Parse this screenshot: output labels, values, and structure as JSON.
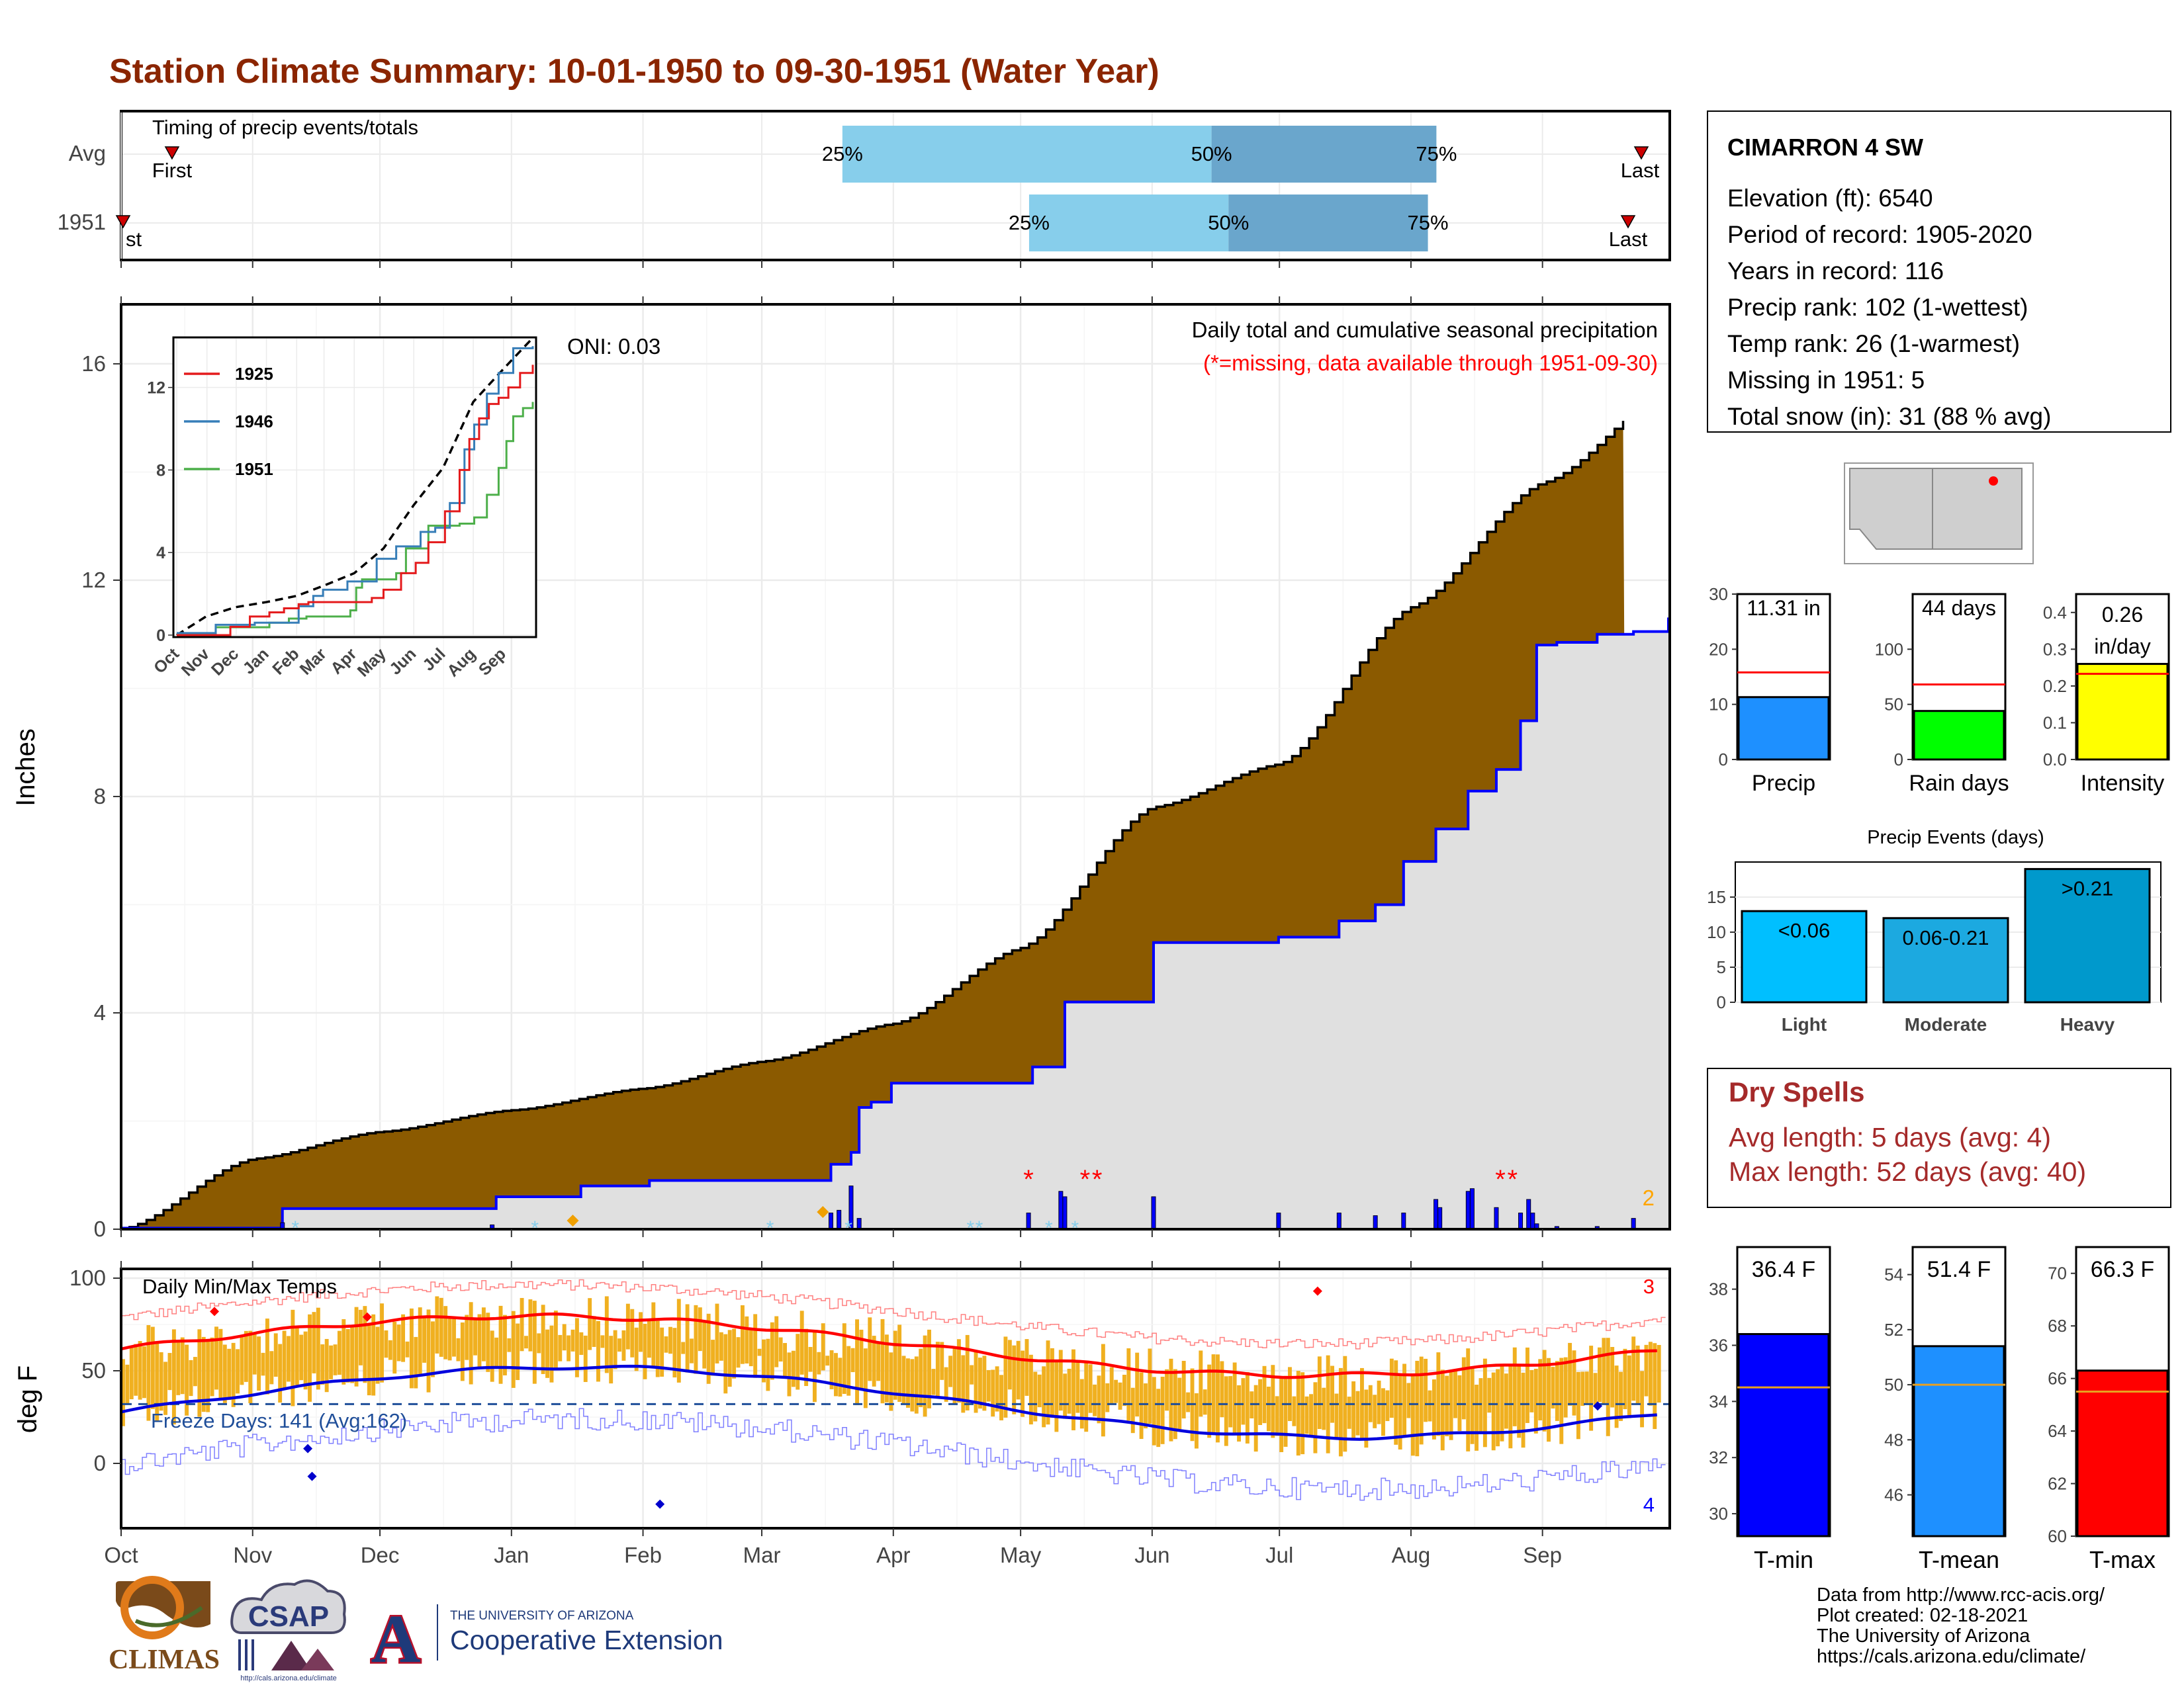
{
  "title": "Station Climate Summary: 10-01-1950 to 09-30-1951 (Water Year)",
  "timing": {
    "heading": "Timing of precip events/totals",
    "row_labels": [
      "Avg",
      "1951"
    ],
    "first_label": "First",
    "first_label_1951": "st",
    "last_label": "Last",
    "pct_labels": [
      "25%",
      "50%",
      "75%"
    ],
    "avg": {
      "first_day": 12,
      "p25_day": 170,
      "p50_day": 257,
      "p75_day": 310,
      "last_day": 370
    },
    "y1951": {
      "first_day": 0,
      "p25_day": 214,
      "p50_day": 261,
      "p75_day": 308,
      "last_day": 366
    }
  },
  "months": [
    "Oct",
    "Nov",
    "Dec",
    "Jan",
    "Feb",
    "Mar",
    "Apr",
    "May",
    "Jun",
    "Jul",
    "Aug",
    "Sep"
  ],
  "precip_panel": {
    "ylabel": "Inches",
    "yticks": [
      "0",
      "4",
      "8",
      "12",
      "16"
    ],
    "annotation_title": "Daily total and cumulative seasonal precipitation",
    "annotation_missing": "(*=missing, data available through 1951-09-30)",
    "oni": "ONI: 0.03",
    "corner_count": "2",
    "inset": {
      "yticks": [
        "0",
        "4",
        "8",
        "12"
      ],
      "months": [
        "Oct",
        "Nov",
        "Dec",
        "Jan",
        "Feb",
        "Mar",
        "Apr",
        "May",
        "Jun",
        "Jul",
        "Aug",
        "Sep"
      ],
      "legend": [
        {
          "name": "1925",
          "color": "#e41a1c"
        },
        {
          "name": "1946",
          "color": "#377eb8"
        },
        {
          "name": "1951",
          "color": "#4daf4a"
        }
      ]
    }
  },
  "temp_panel": {
    "ylabel": "deg F",
    "yticks": [
      "0",
      "50",
      "100"
    ],
    "heading": "Daily Min/Max Temps",
    "freeze_label": "Freeze Days: 141 (Avg:162)",
    "corner_top": "3",
    "corner_bottom": "4"
  },
  "station_box": {
    "name": "CIMARRON 4 SW",
    "lines": [
      "Elevation (ft): 6540",
      "Period of record: 1905-2020",
      "Years in record: 116",
      "Precip rank: 102 (1-wettest)",
      "Temp rank: 26 (1-warmest)",
      "Missing in 1951: 5",
      "Total snow (in): 31 (88 % avg)"
    ]
  },
  "mini_bars": [
    {
      "label": "Precip",
      "value_text": "11.31 in",
      "value": 11.31,
      "avg": 15.8,
      "ymax": 30,
      "yticks": [
        "0",
        "10",
        "20",
        "30"
      ],
      "color": "#1e90ff"
    },
    {
      "label": "Rain days",
      "value_text": "44 days",
      "value": 44,
      "avg": 68,
      "ymax": 150,
      "yticks": [
        "0",
        "50",
        "100"
      ],
      "color": "#00ff00"
    },
    {
      "label": "Intensity",
      "value_text": "0.26",
      "value_text2": "in/day",
      "value": 0.26,
      "avg": 0.233,
      "ymax": 0.45,
      "yticks": [
        "0.0",
        "0.1",
        "0.2",
        "0.3",
        "0.4"
      ],
      "color": "#ffff00"
    }
  ],
  "precip_events": {
    "title": "Precip Events (days)",
    "yticks": [
      "0",
      "5",
      "10",
      "15"
    ],
    "categories": [
      "Light",
      "Moderate",
      "Heavy"
    ],
    "bar_labels": [
      "<0.06",
      "0.06-0.21",
      ">0.21"
    ],
    "values": [
      13,
      12,
      19
    ],
    "colors": [
      "#00bfff",
      "#1ca9e0",
      "#0099cc"
    ]
  },
  "dry_spells": {
    "title": "Dry Spells",
    "lines": [
      "Avg length: 5 days (avg: 4)",
      "Max length: 52 days (avg: 40)"
    ]
  },
  "temp_bars": [
    {
      "label": "T-min",
      "value_text": "36.4 F",
      "value": 36.4,
      "avg": 34.5,
      "ymin": 29.2,
      "ymax": 39.5,
      "yticks": [
        "30",
        "32",
        "34",
        "36",
        "38"
      ],
      "color": "#0000ff"
    },
    {
      "label": "T-mean",
      "value_text": "51.4 F",
      "value": 51.4,
      "avg": 50.0,
      "ymin": 44.5,
      "ymax": 55.0,
      "yticks": [
        "46",
        "48",
        "50",
        "52",
        "54"
      ],
      "color": "#1e90ff"
    },
    {
      "label": "T-max",
      "value_text": "66.3 F",
      "value": 66.3,
      "avg": 65.5,
      "ymin": 60,
      "ymax": 71.0,
      "yticks": [
        "60",
        "62",
        "64",
        "66",
        "68",
        "70"
      ],
      "color": "#ff0000"
    }
  ],
  "footer": {
    "lines": [
      "Data from http://www.rcc-acis.org/",
      "Plot created: 02-18-2021",
      "The University of Arizona",
      "https://cals.arizona.edu/climate/"
    ]
  },
  "logos": {
    "climas": "CLIMAS",
    "csap": "CSAP",
    "csap_url": "http://cals.arizona.edu/climate",
    "ua_top": "THE UNIVERSITY OF ARIZONA",
    "ua_bottom": "Cooperative Extension",
    "ua_letter": "A"
  },
  "colors": {
    "title": "#8b2500",
    "cum_avg_fill": "#8b5a00",
    "cum_year_fill": "#e0e0e0",
    "cum_year_line": "#0000ff",
    "bar_light": "#87ceeb",
    "bar_dark": "#6aa6cc",
    "temp_bar": "#f0b020",
    "dry_title": "#a52a2a"
  },
  "chart_data": [
    {
      "type": "area",
      "x": [
        "Oct",
        "Nov",
        "Dec",
        "Jan",
        "Feb",
        "Mar",
        "Apr",
        "May",
        "Jun",
        "Jul",
        "Aug",
        "Sep",
        "Sep-end"
      ],
      "series": [
        {
          "values": [
            0.0,
            1.3,
            1.8,
            2.2,
            2.6,
            3.1,
            3.8,
            5.2,
            7.8,
            8.6,
            11.5,
            13.8,
            15.5
          ]
        },
        {
          "values": [
            0.0,
            0.0,
            0.4,
            0.4,
            0.8,
            0.9,
            1.4,
            2.7,
            5.3,
            6.0,
            8.1,
            10.8,
            11.31
          ]
        }
      ],
      "ylim": [
        0,
        17
      ]
    },
    {
      "type": "bar",
      "categories": [
        "Light",
        "Moderate",
        "Heavy"
      ],
      "values": [
        13,
        12,
        19
      ],
      "title": "Precip Events (days)"
    },
    {
      "type": "bar",
      "categories": [
        "Precip",
        "Rain days",
        "Intensity"
      ],
      "values": [
        11.31,
        44,
        0.26
      ]
    },
    {
      "type": "bar",
      "categories": [
        "T-min",
        "T-mean",
        "T-max"
      ],
      "values": [
        36.4,
        51.4,
        66.3
      ]
    }
  ]
}
